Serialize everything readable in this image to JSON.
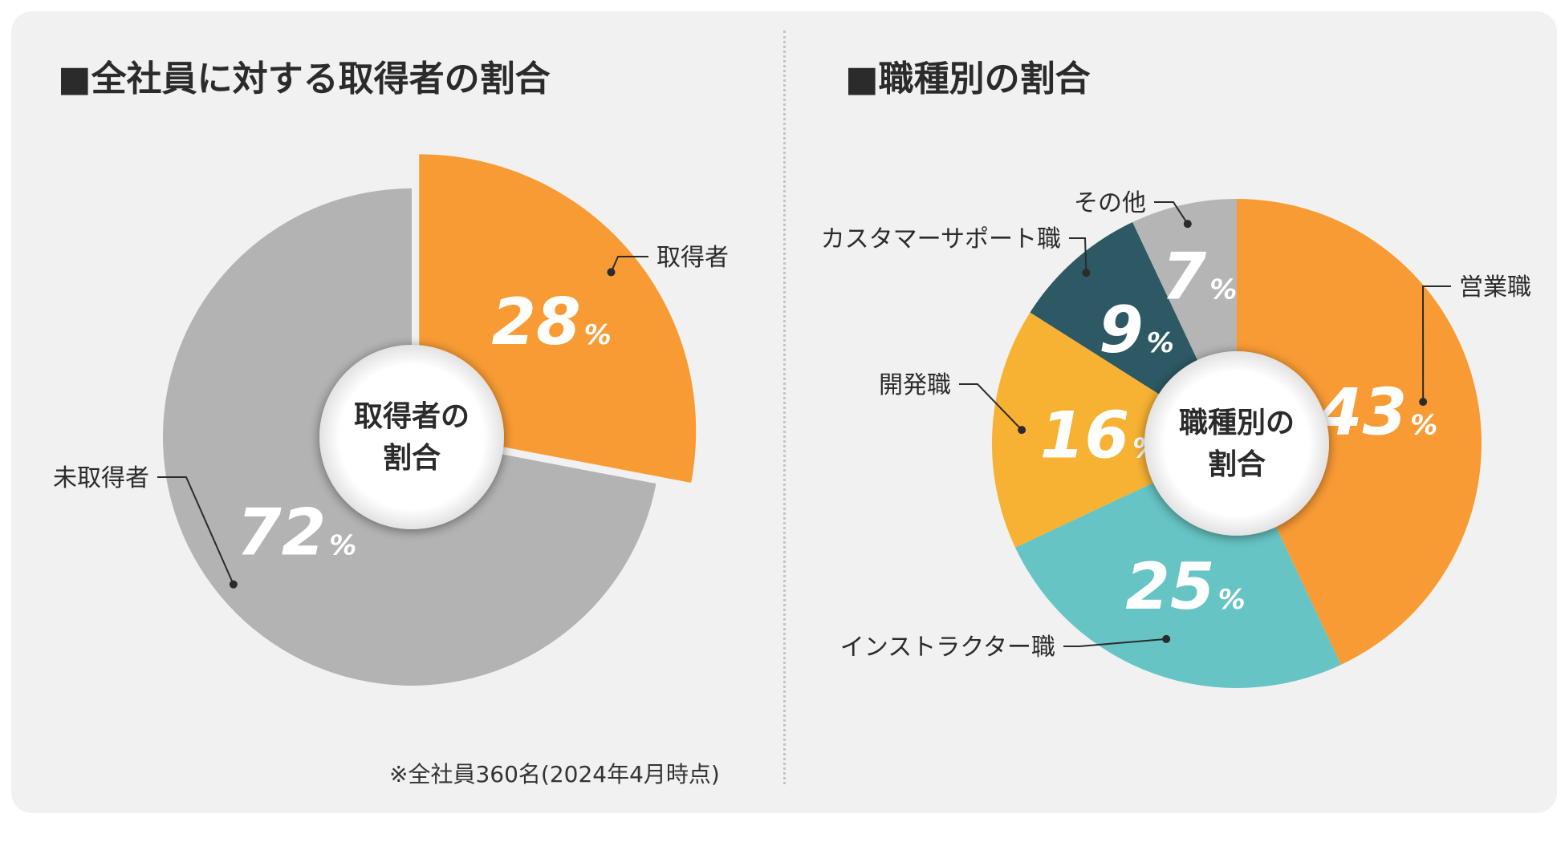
{
  "titles": {
    "left": "■全社員に対する取得者の割合",
    "right": "■職種別の割合"
  },
  "footnote": "※全社員360名(2024年4月時点)",
  "colors": {
    "orange": "#f99b34",
    "gray": "#b3b3b3",
    "teal": "#66c4c4",
    "yellow": "#f7b233",
    "dark_teal": "#2c5964",
    "light_gray": "#b5b5b5"
  },
  "chart_data": [
    {
      "type": "pie",
      "title": "全社員に対する取得者の割合",
      "center_label": [
        "取得者の",
        "割合"
      ],
      "unit": "%",
      "slices": [
        {
          "label": "取得者",
          "value": 28,
          "display": "28",
          "color": "#f99b34",
          "exploded": true
        },
        {
          "label": "未取得者",
          "value": 72,
          "display": "72",
          "color": "#b3b3b3",
          "exploded": false
        }
      ]
    },
    {
      "type": "pie",
      "title": "職種別の割合",
      "center_label": [
        "職種別の",
        "割合"
      ],
      "unit": "%",
      "slices": [
        {
          "label": "営業職",
          "value": 43,
          "display": "43",
          "color": "#f99b34"
        },
        {
          "label": "インストラクター職",
          "value": 25,
          "display": "25",
          "color": "#66c4c4"
        },
        {
          "label": "開発職",
          "value": 16,
          "display": "16",
          "color": "#f7b233"
        },
        {
          "label": "カスタマーサポート職",
          "value": 9,
          "display": "9",
          "color": "#2c5964"
        },
        {
          "label": "その他",
          "value": 7,
          "display": "7",
          "color": "#b5b5b5"
        }
      ]
    }
  ]
}
